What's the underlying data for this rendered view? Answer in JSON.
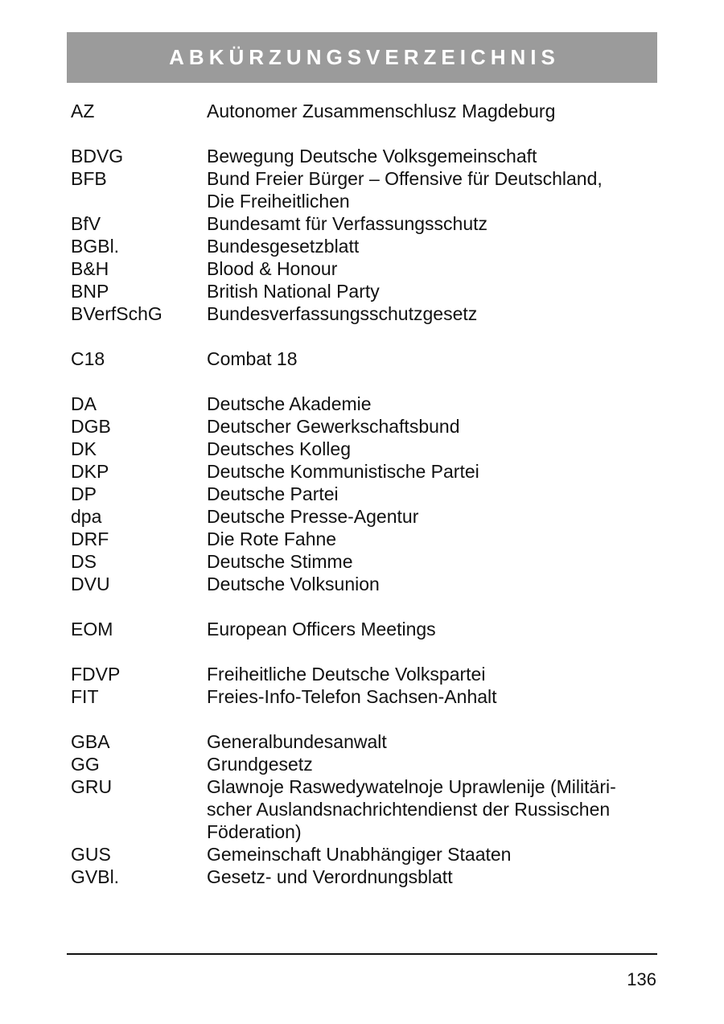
{
  "page": {
    "title": "ABKÜRZUNGSVERZEICHNIS",
    "page_number": "136"
  },
  "colors": {
    "header_bg": "#9b9b9b",
    "header_text": "#ffffff",
    "text": "#111111",
    "page_bg": "#ffffff"
  },
  "abbreviations": {
    "groups": [
      {
        "entries": [
          {
            "abbr": "AZ",
            "definition_lines": [
              "Autonomer Zusammenschlusz Magdeburg"
            ]
          }
        ]
      },
      {
        "entries": [
          {
            "abbr": "BDVG",
            "definition_lines": [
              "Bewegung Deutsche Volksgemeinschaft"
            ]
          },
          {
            "abbr": "BFB",
            "definition_lines": [
              "Bund Freier Bürger – Offensive für Deutschland,",
              "Die Freiheitlichen"
            ]
          },
          {
            "abbr": "BfV",
            "definition_lines": [
              "Bundesamt für Verfassungsschutz"
            ]
          },
          {
            "abbr": "BGBl.",
            "definition_lines": [
              "Bundesgesetzblatt"
            ]
          },
          {
            "abbr": "B&H",
            "definition_lines": [
              "Blood & Honour"
            ]
          },
          {
            "abbr": "BNP",
            "definition_lines": [
              "British National Party"
            ]
          },
          {
            "abbr": "BVerfSchG",
            "definition_lines": [
              "Bundesverfassungsschutzgesetz"
            ]
          }
        ]
      },
      {
        "entries": [
          {
            "abbr": "C18",
            "definition_lines": [
              "Combat 18"
            ]
          }
        ]
      },
      {
        "entries": [
          {
            "abbr": "DA",
            "definition_lines": [
              "Deutsche Akademie"
            ]
          },
          {
            "abbr": "DGB",
            "definition_lines": [
              "Deutscher Gewerkschaftsbund"
            ]
          },
          {
            "abbr": "DK",
            "definition_lines": [
              "Deutsches Kolleg"
            ]
          },
          {
            "abbr": "DKP",
            "definition_lines": [
              "Deutsche Kommunistische Partei"
            ]
          },
          {
            "abbr": "DP",
            "definition_lines": [
              "Deutsche Partei"
            ]
          },
          {
            "abbr": "dpa",
            "definition_lines": [
              "Deutsche Presse-Agentur"
            ]
          },
          {
            "abbr": "DRF",
            "definition_lines": [
              "Die Rote Fahne"
            ]
          },
          {
            "abbr": "DS",
            "definition_lines": [
              "Deutsche Stimme"
            ]
          },
          {
            "abbr": "DVU",
            "definition_lines": [
              "Deutsche Volksunion"
            ]
          }
        ]
      },
      {
        "entries": [
          {
            "abbr": "EOM",
            "definition_lines": [
              "European Officers Meetings"
            ]
          }
        ]
      },
      {
        "entries": [
          {
            "abbr": "FDVP",
            "definition_lines": [
              "Freiheitliche Deutsche Volkspartei"
            ]
          },
          {
            "abbr": "FIT",
            "definition_lines": [
              "Freies-Info-Telefon Sachsen-Anhalt"
            ]
          }
        ]
      },
      {
        "entries": [
          {
            "abbr": "GBA",
            "definition_lines": [
              "Generalbundesanwalt"
            ]
          },
          {
            "abbr": "GG",
            "definition_lines": [
              "Grundgesetz"
            ]
          },
          {
            "abbr": "GRU",
            "definition_lines": [
              "Glawnoje Raswedywatelnoje Uprawlenije (Militäri-",
              "scher Auslandsnachrichtendienst der Russischen",
              "Föderation)"
            ]
          },
          {
            "abbr": "GUS",
            "definition_lines": [
              "Gemeinschaft Unabhängiger Staaten"
            ]
          },
          {
            "abbr": "GVBl.",
            "definition_lines": [
              "Gesetz- und Verordnungsblatt"
            ]
          }
        ]
      }
    ]
  }
}
